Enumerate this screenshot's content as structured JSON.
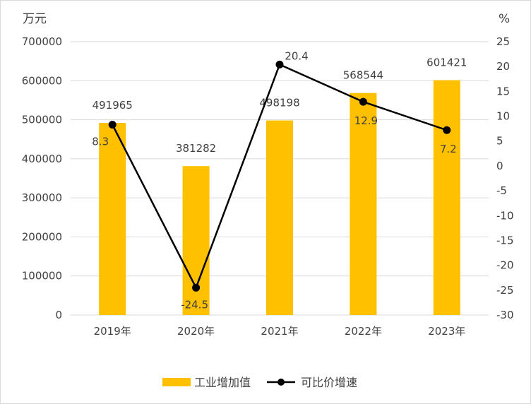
{
  "chart_data": {
    "type": "bar+line",
    "categories": [
      "2019年",
      "2020年",
      "2021年",
      "2022年",
      "2023年"
    ],
    "y_left": {
      "unit": "万元",
      "ylim": [
        0,
        700000
      ],
      "ticks": [
        "0",
        "100000",
        "200000",
        "300000",
        "400000",
        "500000",
        "600000",
        "700000"
      ]
    },
    "y_right": {
      "unit": "%",
      "ylim": [
        -30,
        25
      ],
      "ticks": [
        "-30",
        "-25",
        "-20",
        "-15",
        "-10",
        "-5",
        "0",
        "5",
        "10",
        "15",
        "20",
        "25"
      ]
    },
    "series": [
      {
        "name": "工业增加值",
        "type": "bar",
        "axis": "left",
        "color": "#FFC000",
        "values": [
          491965,
          381282,
          498198,
          568544,
          601421
        ],
        "labels": [
          "491965",
          "381282",
          "498198",
          "568544",
          "601421"
        ]
      },
      {
        "name": "可比价增速",
        "type": "line",
        "axis": "right",
        "color": "#000000",
        "values": [
          8.3,
          -24.5,
          20.4,
          12.9,
          7.2
        ],
        "labels": [
          "8.3",
          "-24.5",
          "20.4",
          "12.9",
          "7.2"
        ]
      }
    ],
    "grid": true,
    "legend": "bottom-center"
  }
}
